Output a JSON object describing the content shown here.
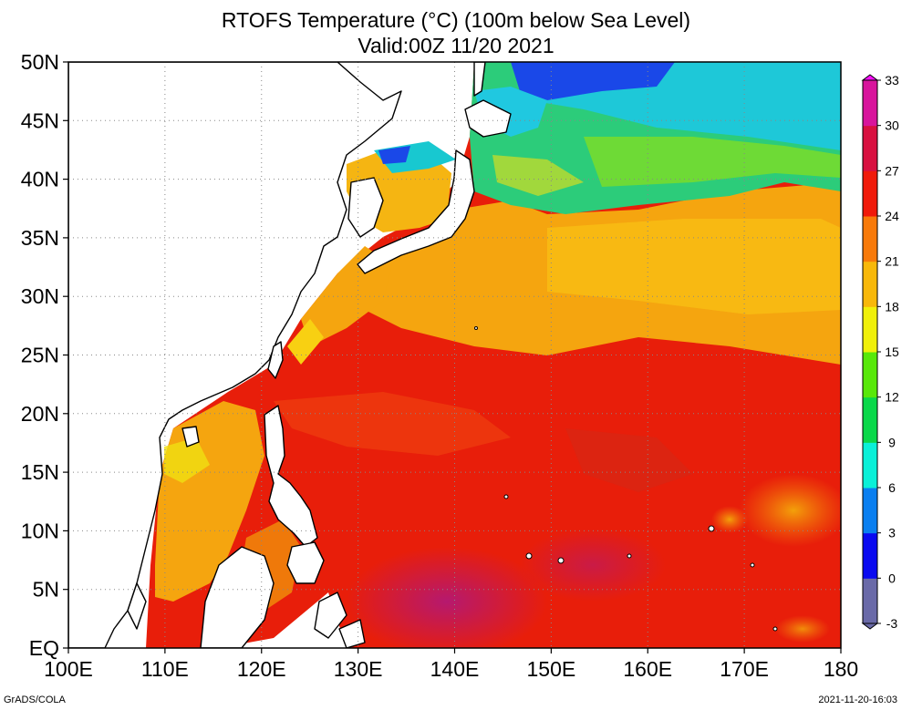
{
  "title": {
    "line1": "RTOFS Temperature (°C) (100m below Sea Level)",
    "line2": "Valid:00Z 11/20 2021"
  },
  "map": {
    "lat_ticks": [
      "EQ",
      "5N",
      "10N",
      "15N",
      "20N",
      "25N",
      "30N",
      "35N",
      "40N",
      "45N",
      "50N"
    ],
    "lat_values": [
      0,
      5,
      10,
      15,
      20,
      25,
      30,
      35,
      40,
      45,
      50
    ],
    "lon_ticks": [
      "100E",
      "110E",
      "120E",
      "130E",
      "140E",
      "150E",
      "160E",
      "170E",
      "180"
    ],
    "lon_values": [
      100,
      110,
      120,
      130,
      140,
      150,
      160,
      170,
      180
    ],
    "lat_range": [
      0,
      50
    ],
    "lon_range": [
      100,
      180
    ],
    "grid": "dotted"
  },
  "colorbar": {
    "labels": [
      "-3",
      "0",
      "3",
      "6",
      "9",
      "12",
      "15",
      "18",
      "21",
      "24",
      "27",
      "30",
      "33"
    ],
    "values": [
      -3,
      0,
      3,
      6,
      9,
      12,
      15,
      18,
      21,
      24,
      27,
      30,
      33
    ],
    "colors": [
      "#6a6aa8",
      "#0a0af0",
      "#0a7ff0",
      "#0af0d8",
      "#0ad84a",
      "#58e80a",
      "#f0f00a",
      "#f8b80a",
      "#f87a0a",
      "#f01a0a",
      "#d81040",
      "#d8149c",
      "#ff10ff"
    ]
  },
  "footer": {
    "credit": "GrADS/COLA",
    "timestamp": "2021-11-20-16:03"
  }
}
